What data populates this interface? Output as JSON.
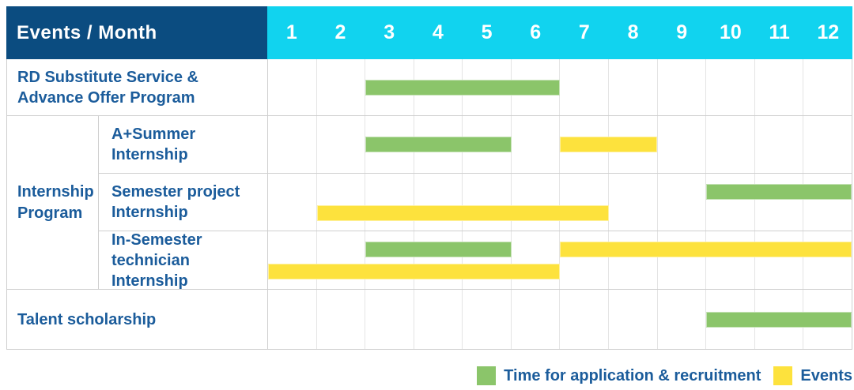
{
  "header": {
    "label": "Events / Month",
    "months": [
      "1",
      "2",
      "3",
      "4",
      "5",
      "6",
      "7",
      "8",
      "9",
      "10",
      "11",
      "12"
    ]
  },
  "colors": {
    "navy": "#0b4c80",
    "cyan": "#11d3ef",
    "green": "#8bc56a",
    "yellow": "#fde23d",
    "text_blue": "#1b5c9b"
  },
  "group": {
    "label_lines": [
      "Internship",
      "Program"
    ]
  },
  "rows": [
    {
      "label_lines": [
        "RD Substitute Service &",
        "Advance Offer Program"
      ],
      "group_pos": null,
      "bars": [
        {
          "color": "green",
          "start_month": 3,
          "end_month": 6,
          "line": "single"
        }
      ]
    },
    {
      "label_lines": [
        "A+Summer",
        "Internship"
      ],
      "group_pos": "first",
      "bars": [
        {
          "color": "green",
          "start_month": 3,
          "end_month": 5,
          "line": "single"
        },
        {
          "color": "yellow",
          "start_month": 7,
          "end_month": 8,
          "line": "single"
        }
      ]
    },
    {
      "label_lines": [
        "Semester project",
        "Internship"
      ],
      "group_pos": "mid",
      "bars": [
        {
          "color": "green",
          "start_month": 10,
          "end_month": 12,
          "line": "top"
        },
        {
          "color": "yellow",
          "start_month": 2,
          "end_month": 7,
          "line": "bottom"
        }
      ]
    },
    {
      "label_lines": [
        "In-Semester",
        "technician Internship"
      ],
      "group_pos": "last",
      "bars": [
        {
          "color": "green",
          "start_month": 3,
          "end_month": 5,
          "line": "top"
        },
        {
          "color": "yellow",
          "start_month": 7,
          "end_month": 12,
          "line": "top"
        },
        {
          "color": "yellow",
          "start_month": 1,
          "end_month": 6,
          "line": "bottom"
        }
      ]
    },
    {
      "label_lines": [
        "Talent scholarship"
      ],
      "group_pos": null,
      "bars": [
        {
          "color": "green",
          "start_month": 10,
          "end_month": 12,
          "line": "single"
        }
      ]
    }
  ],
  "legend": {
    "items": [
      {
        "color": "green",
        "label": "Time for application & recruitment"
      },
      {
        "color": "yellow",
        "label": "Events"
      }
    ]
  },
  "chart_data": {
    "type": "bar",
    "subtype": "gantt",
    "title": "Events / Month",
    "x": {
      "label": "Month",
      "ticks": [
        1,
        2,
        3,
        4,
        5,
        6,
        7,
        8,
        9,
        10,
        11,
        12
      ],
      "range": [
        1,
        12
      ]
    },
    "grid": true,
    "legend_position": "bottom-right",
    "row_groups": [
      {
        "group": "Internship Program",
        "rows": [
          "A+Summer Internship",
          "Semester project Internship",
          "In-Semester technician Internship"
        ]
      }
    ],
    "series": [
      {
        "name": "Time for application & recruitment",
        "color": "#8bc56a",
        "ranges": [
          {
            "row": "RD Substitute Service & Advance Offer Program",
            "start_month": 3,
            "end_month": 6
          },
          {
            "row": "A+Summer Internship",
            "start_month": 3,
            "end_month": 5
          },
          {
            "row": "Semester project Internship",
            "start_month": 10,
            "end_month": 12
          },
          {
            "row": "In-Semester technician Internship",
            "start_month": 3,
            "end_month": 5
          },
          {
            "row": "Talent scholarship",
            "start_month": 10,
            "end_month": 12
          }
        ]
      },
      {
        "name": "Events",
        "color": "#fde23d",
        "ranges": [
          {
            "row": "A+Summer Internship",
            "start_month": 7,
            "end_month": 8
          },
          {
            "row": "Semester project Internship",
            "start_month": 2,
            "end_month": 7
          },
          {
            "row": "In-Semester technician Internship",
            "start_month": 7,
            "end_month": 12
          },
          {
            "row": "In-Semester technician Internship",
            "start_month": 1,
            "end_month": 6
          }
        ]
      }
    ]
  }
}
